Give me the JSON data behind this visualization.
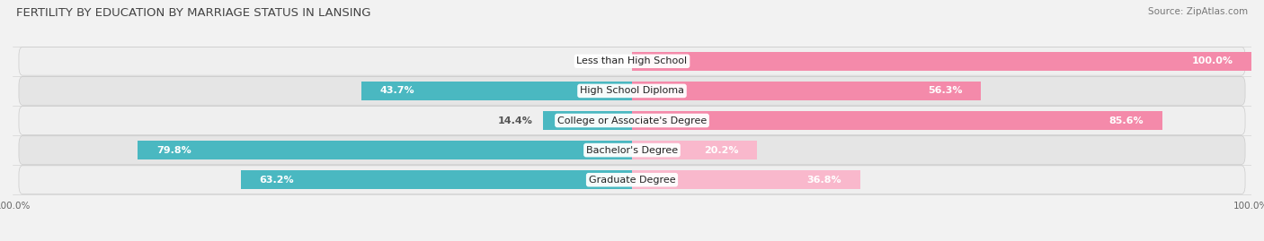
{
  "title": "FERTILITY BY EDUCATION BY MARRIAGE STATUS IN LANSING",
  "source": "Source: ZipAtlas.com",
  "categories": [
    "Less than High School",
    "High School Diploma",
    "College or Associate's Degree",
    "Bachelor's Degree",
    "Graduate Degree"
  ],
  "married": [
    0.0,
    43.7,
    14.4,
    79.8,
    63.2
  ],
  "unmarried": [
    100.0,
    56.3,
    85.6,
    20.2,
    36.8
  ],
  "married_color": "#4ab8c1",
  "unmarried_color": "#f48aaa",
  "unmarried_color_light": "#f9b8cc",
  "bg_color": "#f2f2f2",
  "row_bg_even": "#efefef",
  "row_bg_odd": "#e5e5e5",
  "title_fontsize": 9.5,
  "source_fontsize": 7.5,
  "bar_label_fontsize": 8,
  "cat_label_fontsize": 8,
  "legend_fontsize": 8.5,
  "axis_label_fontsize": 7.5,
  "figsize": [
    14.06,
    2.69
  ],
  "dpi": 100
}
